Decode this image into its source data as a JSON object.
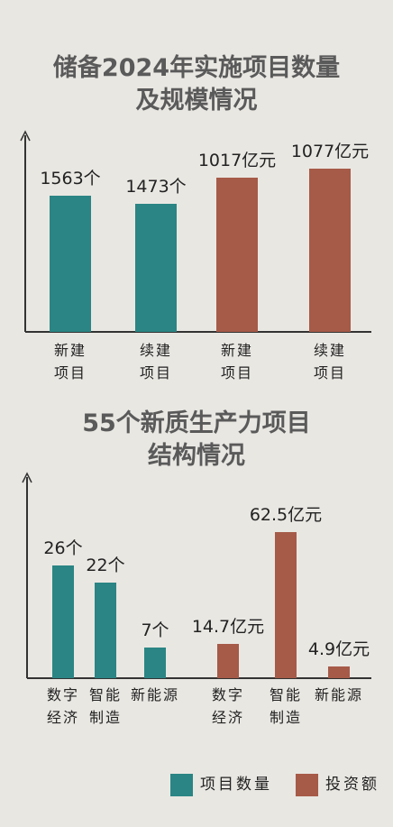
{
  "chart_data": [
    {
      "type": "bar",
      "title": [
        "储备2024年实施项目数量",
        "及规模情况"
      ],
      "categories": [
        "新建项目",
        "续建项目",
        "新建项目",
        "续建项目"
      ],
      "series": [
        {
          "color": "#2a8584",
          "values": [
            1563,
            1473,
            null,
            null
          ],
          "value_labels": [
            "1563个",
            "1473个",
            null,
            null
          ]
        },
        {
          "color": "#a65a48",
          "values": [
            null,
            null,
            1017,
            1077
          ],
          "value_labels": [
            null,
            null,
            "1017亿元",
            "1077亿元"
          ]
        }
      ]
    },
    {
      "type": "bar",
      "title": [
        "55个新质生产力项目",
        "结构情况"
      ],
      "categories": [
        "数字经济",
        "智能制造",
        "新能源",
        "数字经济",
        "智能制造",
        "新能源"
      ],
      "series": [
        {
          "name": "项目数量",
          "color": "#2a8584",
          "values": [
            26,
            22,
            7,
            null,
            null,
            null
          ],
          "value_labels": [
            "26个",
            "22个",
            "7个",
            null,
            null,
            null
          ]
        },
        {
          "name": "投资额",
          "color": "#a65a48",
          "values": [
            null,
            null,
            null,
            14.7,
            62.5,
            4.9
          ],
          "value_labels": [
            null,
            null,
            null,
            "14.7亿元",
            "62.5亿元",
            "4.9亿元"
          ]
        }
      ]
    }
  ]
}
